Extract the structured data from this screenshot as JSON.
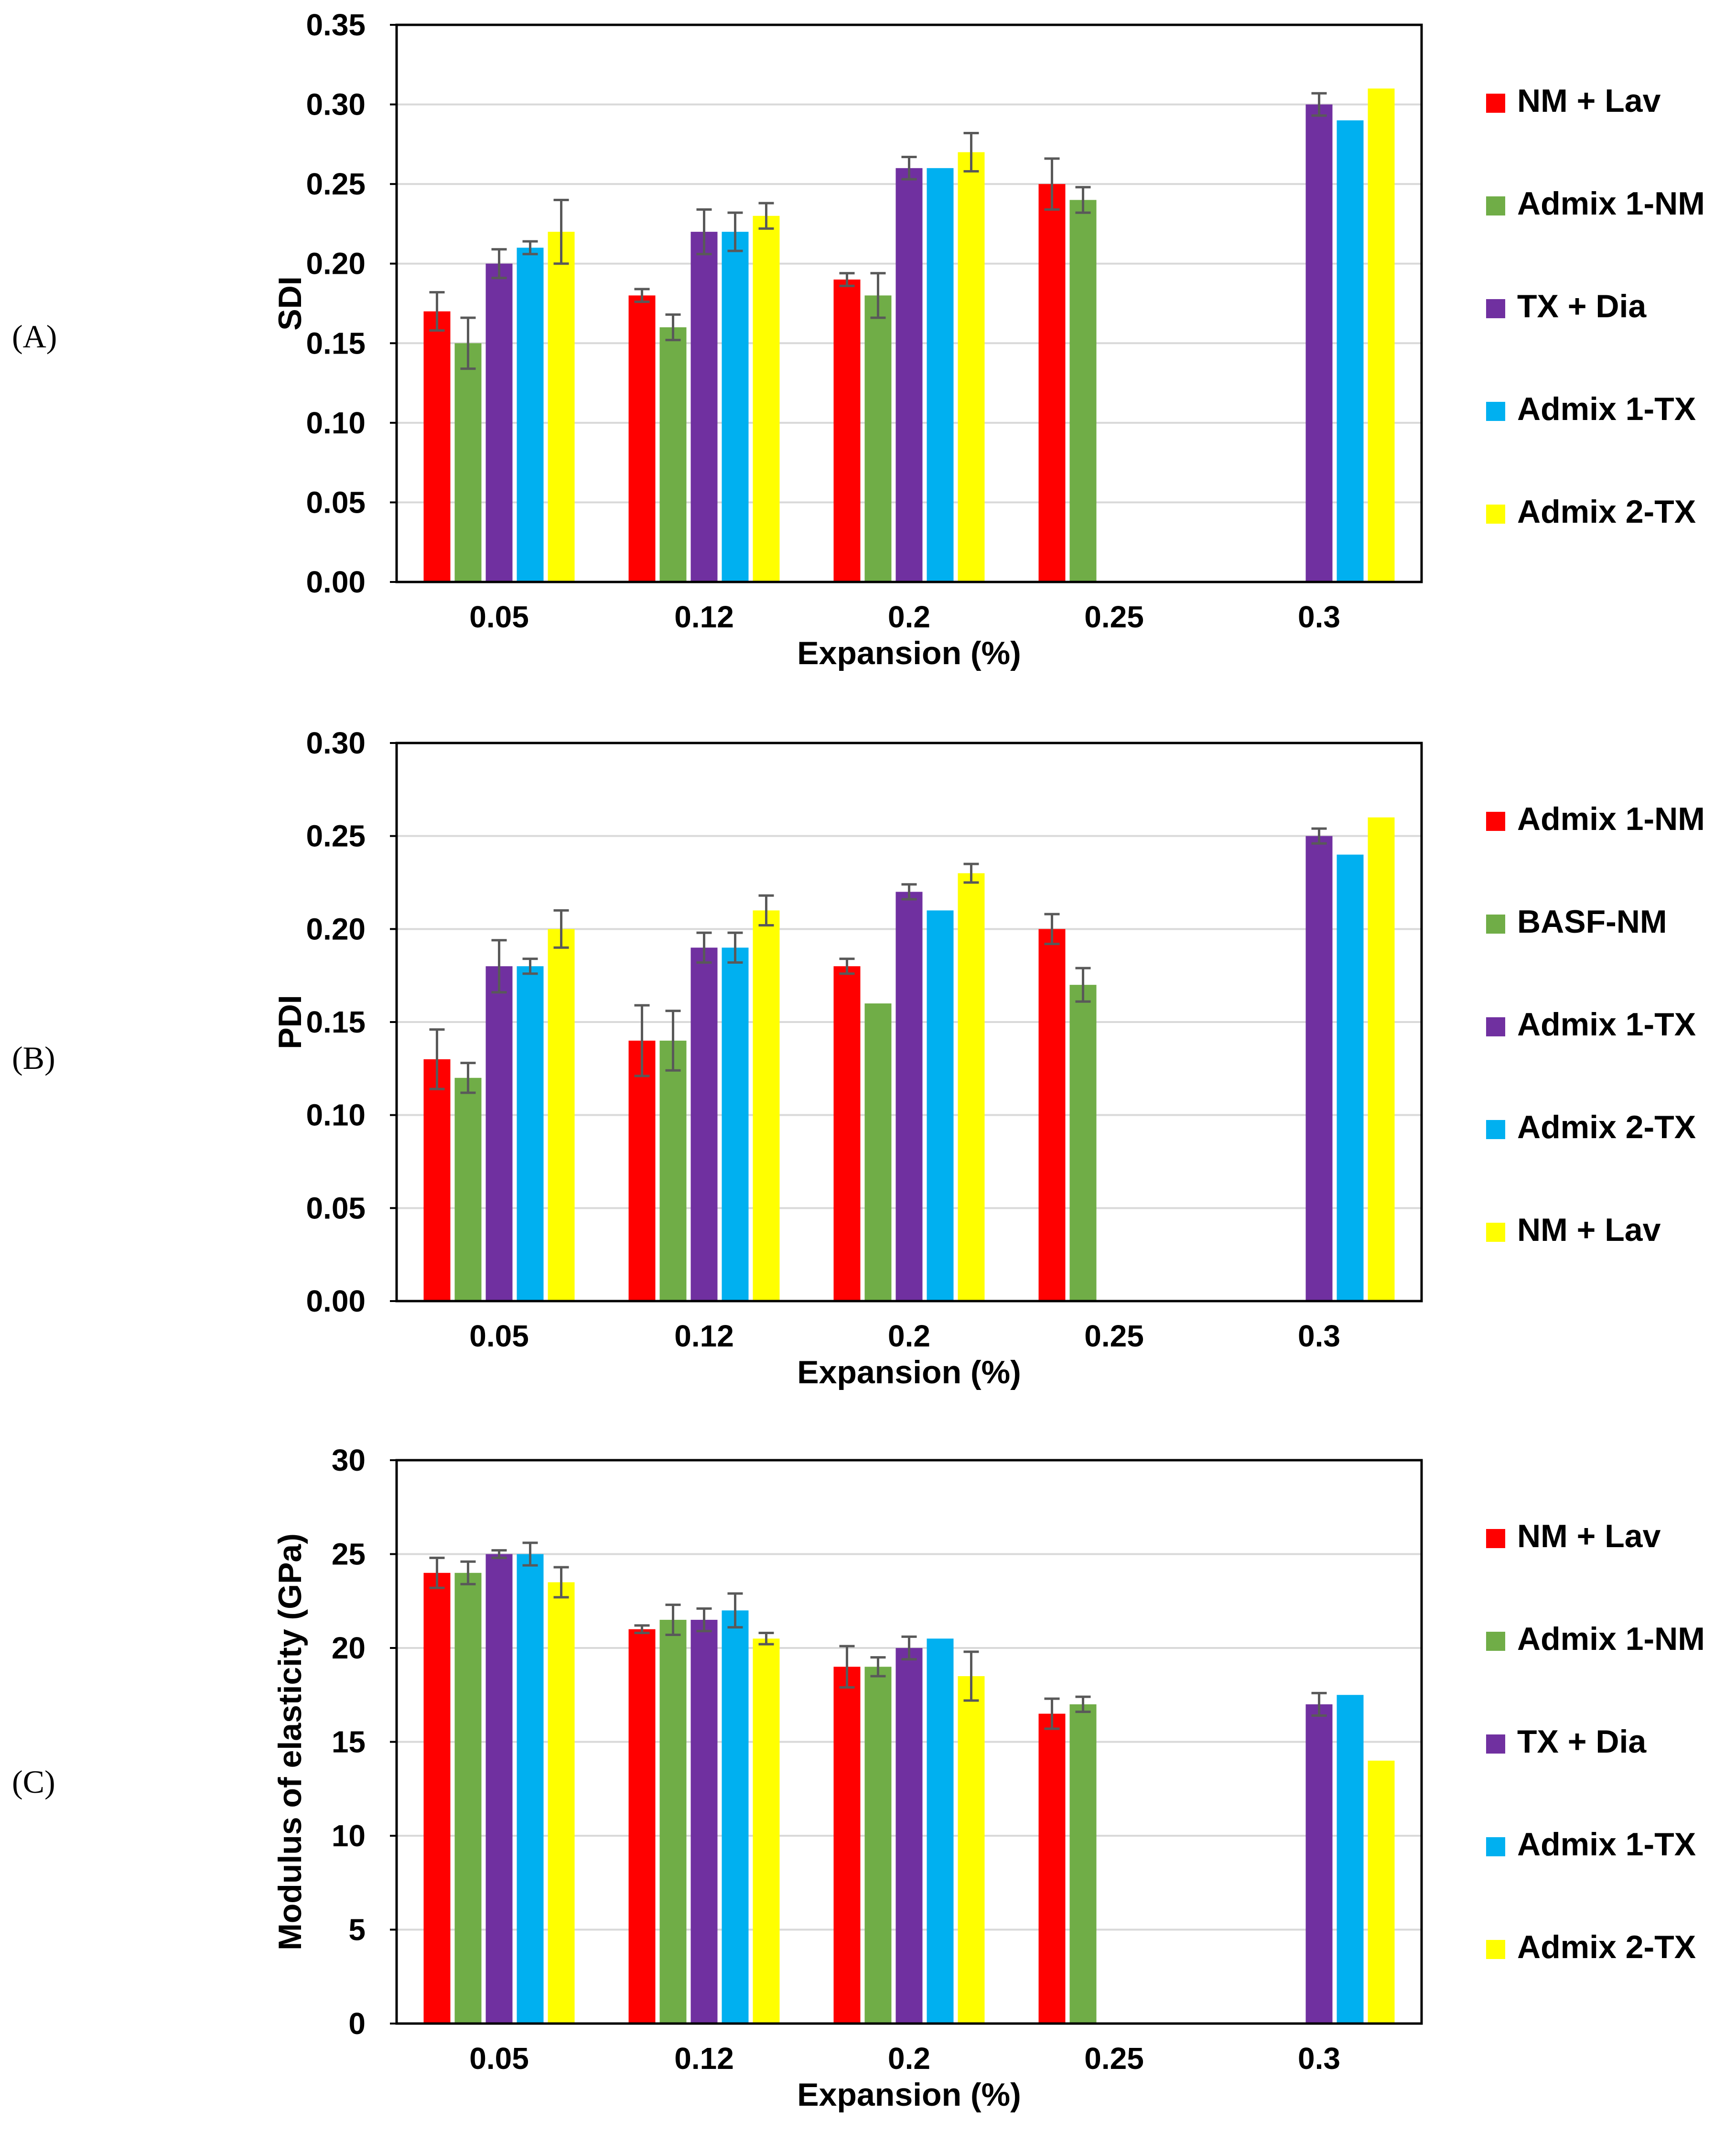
{
  "chart_data": [
    {
      "type": "bar",
      "panel": "(A)",
      "xlabel": "Expansion (%)",
      "ylabel": "SDI",
      "categories": [
        "0.05",
        "0.12",
        "0.2",
        "0.25",
        "0.3"
      ],
      "ylim": [
        0,
        0.35
      ],
      "yticks": [
        "0.00",
        "0.05",
        "0.10",
        "0.15",
        "0.20",
        "0.25",
        "0.30",
        "0.35"
      ],
      "series": [
        {
          "name": "NM + Lav",
          "color": "#ff0000",
          "values": [
            0.17,
            0.18,
            0.19,
            0.25,
            null
          ],
          "errors": [
            0.012,
            0.004,
            0.004,
            0.016,
            null
          ]
        },
        {
          "name": "Admix 1-NM",
          "color": "#70ad47",
          "values": [
            0.15,
            0.16,
            0.18,
            0.24,
            null
          ],
          "errors": [
            0.016,
            0.008,
            0.014,
            0.008,
            null
          ]
        },
        {
          "name": "TX + Dia",
          "color": "#7030a0",
          "values": [
            0.2,
            0.22,
            0.26,
            null,
            0.3
          ],
          "errors": [
            0.009,
            0.014,
            0.007,
            null,
            0.007
          ]
        },
        {
          "name": "Admix 1-TX",
          "color": "#00b0f0",
          "values": [
            0.21,
            0.22,
            0.26,
            null,
            0.29
          ],
          "errors": [
            0.004,
            0.012,
            0,
            null,
            0
          ]
        },
        {
          "name": "Admix 2-TX",
          "color": "#ffff00",
          "values": [
            0.22,
            0.23,
            0.27,
            null,
            0.31
          ],
          "errors": [
            0.02,
            0.008,
            0.012,
            null,
            0
          ]
        }
      ]
    },
    {
      "type": "bar",
      "panel": "(B)",
      "xlabel": "Expansion (%)",
      "ylabel": "PDI",
      "categories": [
        "0.05",
        "0.12",
        "0.2",
        "0.25",
        "0.3"
      ],
      "ylim": [
        0,
        0.3
      ],
      "yticks": [
        "0.00",
        "0.05",
        "0.10",
        "0.15",
        "0.20",
        "0.25",
        "0.30"
      ],
      "series": [
        {
          "name": "Admix 1-NM",
          "color": "#ff0000",
          "values": [
            0.13,
            0.14,
            0.18,
            0.2,
            null
          ],
          "errors": [
            0.016,
            0.019,
            0.004,
            0.008,
            null
          ]
        },
        {
          "name": "BASF-NM",
          "color": "#70ad47",
          "values": [
            0.12,
            0.14,
            0.16,
            0.17,
            null
          ],
          "errors": [
            0.008,
            0.016,
            0,
            0.009,
            null
          ]
        },
        {
          "name": "Admix 1-TX",
          "color": "#7030a0",
          "values": [
            0.18,
            0.19,
            0.22,
            null,
            0.25
          ],
          "errors": [
            0.014,
            0.008,
            0.004,
            null,
            0.004
          ]
        },
        {
          "name": "Admix 2-TX",
          "color": "#00b0f0",
          "values": [
            0.18,
            0.19,
            0.21,
            null,
            0.24
          ],
          "errors": [
            0.004,
            0.008,
            0,
            null,
            0
          ]
        },
        {
          "name": "NM + Lav",
          "color": "#ffff00",
          "values": [
            0.2,
            0.21,
            0.23,
            null,
            0.26
          ],
          "errors": [
            0.01,
            0.008,
            0.005,
            null,
            0
          ]
        }
      ]
    },
    {
      "type": "bar",
      "panel": "(C)",
      "xlabel": "Expansion (%)",
      "ylabel": "Modulus of elasticity (GPa)",
      "categories": [
        "0.05",
        "0.12",
        "0.2",
        "0.25",
        "0.3"
      ],
      "ylim": [
        0,
        30
      ],
      "yticks": [
        "0",
        "5",
        "10",
        "15",
        "20",
        "25",
        "30"
      ],
      "series": [
        {
          "name": "NM + Lav",
          "color": "#ff0000",
          "values": [
            24,
            21,
            19,
            16.5,
            null
          ],
          "errors": [
            0.8,
            0.2,
            1.1,
            0.8,
            null
          ]
        },
        {
          "name": "Admix 1-NM",
          "color": "#70ad47",
          "values": [
            24,
            21.5,
            19,
            17,
            null
          ],
          "errors": [
            0.6,
            0.8,
            0.5,
            0.4,
            null
          ]
        },
        {
          "name": "TX + Dia",
          "color": "#7030a0",
          "values": [
            25,
            21.5,
            20,
            null,
            17
          ],
          "errors": [
            0.2,
            0.6,
            0.6,
            null,
            0.6
          ]
        },
        {
          "name": "Admix 1-TX",
          "color": "#00b0f0",
          "values": [
            25,
            22,
            20.5,
            null,
            17.5
          ],
          "errors": [
            0.6,
            0.9,
            0,
            null,
            0
          ]
        },
        {
          "name": "Admix 2-TX",
          "color": "#ffff00",
          "values": [
            23.5,
            20.5,
            18.5,
            null,
            14
          ],
          "errors": [
            0.8,
            0.3,
            1.3,
            null,
            0
          ]
        }
      ]
    }
  ]
}
